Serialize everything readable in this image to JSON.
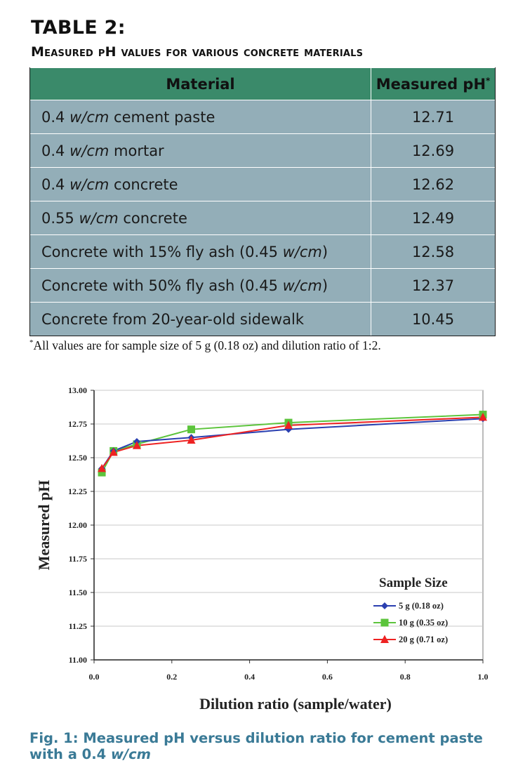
{
  "table": {
    "title_line1": "TABLE 2:",
    "title_line2": "Measured pH values for various concrete materials",
    "headers": {
      "material": "Material",
      "ph": "Measured pH",
      "ph_mark": "*"
    },
    "rows": [
      {
        "pre": "0.4 ",
        "wcm": "w/cm",
        "post": " cement paste",
        "value": "12.71"
      },
      {
        "pre": "0.4 ",
        "wcm": "w/cm",
        "post": " mortar",
        "value": "12.69"
      },
      {
        "pre": "0.4 ",
        "wcm": "w/cm",
        "post": " concrete",
        "value": "12.62"
      },
      {
        "pre": "0.55 ",
        "wcm": "w/cm",
        "post": " concrete",
        "value": "12.49"
      },
      {
        "pre": "Concrete with 15% fly ash (0.45 ",
        "wcm": "w/cm",
        "post": ")",
        "value": "12.58"
      },
      {
        "pre": "Concrete with 50% fly ash (0.45 ",
        "wcm": "w/cm",
        "post": ")",
        "value": "12.37"
      },
      {
        "pre": "Concrete from 20-year-old sidewalk",
        "wcm": "",
        "post": "",
        "value": "10.45"
      }
    ],
    "footnote_mark": "*",
    "footnote": "All values are for sample size of 5 g (0.18 oz) and dilution ratio of 1:2."
  },
  "chart_data": {
    "type": "line",
    "title": "",
    "xlabel": "Dilution ratio (sample/water)",
    "ylabel": "Measured pH",
    "xlim": [
      0.0,
      1.0
    ],
    "ylim": [
      11.0,
      13.0
    ],
    "xticks": [
      "0.0",
      "0.2",
      "0.4",
      "0.6",
      "0.8",
      "1.0"
    ],
    "yticks": [
      "11.00",
      "11.25",
      "11.50",
      "11.75",
      "12.00",
      "12.25",
      "12.50",
      "12.75",
      "13.00"
    ],
    "grid": "horizontal",
    "legend_title": "Sample Size",
    "legend_position": "bottom-right",
    "series": [
      {
        "name": "5 g (0.18 oz)",
        "color": "#2a3fb0",
        "marker": "diamond",
        "x": [
          0.02,
          0.05,
          0.11,
          0.25,
          0.5,
          1.0
        ],
        "y": [
          12.42,
          12.55,
          12.62,
          12.65,
          12.71,
          12.79
        ]
      },
      {
        "name": "10 g (0.35 oz)",
        "color": "#5cc43c",
        "marker": "square",
        "x": [
          0.02,
          0.05,
          0.11,
          0.25,
          0.5,
          1.0
        ],
        "y": [
          12.39,
          12.55,
          12.6,
          12.71,
          12.76,
          12.82
        ]
      },
      {
        "name": "20 g (0.71 oz)",
        "color": "#ee2222",
        "marker": "triangle",
        "x": [
          0.02,
          0.05,
          0.11,
          0.25,
          0.5,
          1.0
        ],
        "y": [
          12.42,
          12.54,
          12.59,
          12.63,
          12.74,
          12.8
        ]
      }
    ]
  },
  "caption": {
    "text": "Fig. 1: Measured pH versus dilution ratio for cement paste with a 0.4 ",
    "wcm": "w/cm"
  }
}
